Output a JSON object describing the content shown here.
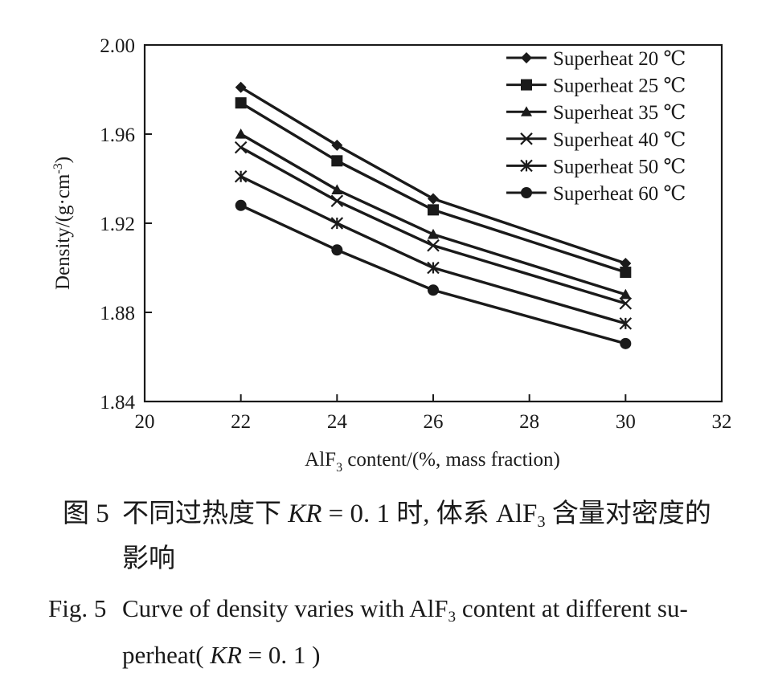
{
  "chart_data": {
    "type": "line",
    "x_values": [
      22,
      24,
      26,
      30
    ],
    "series": [
      {
        "name": "Superheat 20 ℃",
        "marker": "diamond",
        "values": [
          1.981,
          1.955,
          1.931,
          1.902
        ]
      },
      {
        "name": "Superheat 25 ℃",
        "marker": "square",
        "values": [
          1.974,
          1.948,
          1.926,
          1.898
        ]
      },
      {
        "name": "Superheat 35 ℃",
        "marker": "triangle",
        "values": [
          1.96,
          1.935,
          1.915,
          1.888
        ]
      },
      {
        "name": "Superheat 40 ℃",
        "marker": "x",
        "values": [
          1.954,
          1.93,
          1.91,
          1.884
        ]
      },
      {
        "name": "Superheat 50 ℃",
        "marker": "asterisk",
        "values": [
          1.941,
          1.92,
          1.9,
          1.875
        ]
      },
      {
        "name": "Superheat 60 ℃",
        "marker": "circle",
        "values": [
          1.928,
          1.908,
          1.89,
          1.866
        ]
      }
    ],
    "xlim": [
      20,
      32
    ],
    "ylim": [
      1.84,
      2.0
    ],
    "x_ticks": [
      "20",
      "22",
      "24",
      "26",
      "28",
      "30",
      "32"
    ],
    "y_ticks": [
      "1.84",
      "1.88",
      "1.92",
      "1.96",
      "2.00"
    ],
    "xlabel_main": "AlF",
    "xlabel_sub": "3",
    "xlabel_rest": " content/(%, mass fraction)",
    "ylabel_main": "Density/(g·cm",
    "ylabel_sup": "-3",
    "ylabel_end": ")",
    "legend_position": "top-right",
    "grid": false,
    "line_color": "#1a1a1a"
  },
  "caption": {
    "cn_label": "图 5",
    "cn_text_a": "不同过热度下 ",
    "cn_text_kr": "KR",
    "cn_text_b": " = 0. 1 时, 体系 AlF",
    "cn_text_sub": "3",
    "cn_text_c": " 含量对密度的",
    "cn_text_line2": "影响",
    "en_label": "Fig. 5",
    "en_text_a": "Curve of density varies with AlF",
    "en_text_sub": "3",
    "en_text_b": " content at different su-",
    "en_text_line2_a": "perheat( ",
    "en_text_line2_kr": "KR",
    "en_text_line2_b": " = 0. 1 )"
  }
}
